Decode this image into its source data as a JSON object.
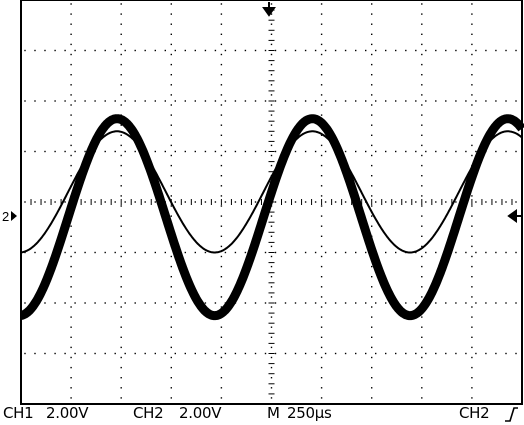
{
  "scope": {
    "divisions_x": 10,
    "divisions_y": 8,
    "trigger_position_marker": "down-arrow-icon",
    "trigger_level_marker": "left-arrow-icon",
    "channel_marker": {
      "label": "2",
      "icon": "right-arrow-icon"
    },
    "colors": {
      "background": "#ffffff",
      "trace": "#000000",
      "grid": "#000000"
    }
  },
  "status_bar": {
    "ch1_label": "CH1",
    "ch1_scale": "2.00V",
    "ch2_label": "CH2",
    "ch2_scale": "2.00V",
    "timebase_label": "M",
    "timebase_value": "250µs",
    "trigger_source": "CH2",
    "trigger_slope_icon": "rising-edge-icon"
  },
  "traces": [
    {
      "name": "CH1",
      "shape": "sine",
      "period_div": 3.9,
      "amplitude_div": 1.95,
      "offset_div": -0.3,
      "thick": true
    },
    {
      "name": "CH2",
      "shape": "sine",
      "period_div": 3.9,
      "amplitude_div": 1.2,
      "offset_div": 0.2,
      "thick": false
    }
  ]
}
